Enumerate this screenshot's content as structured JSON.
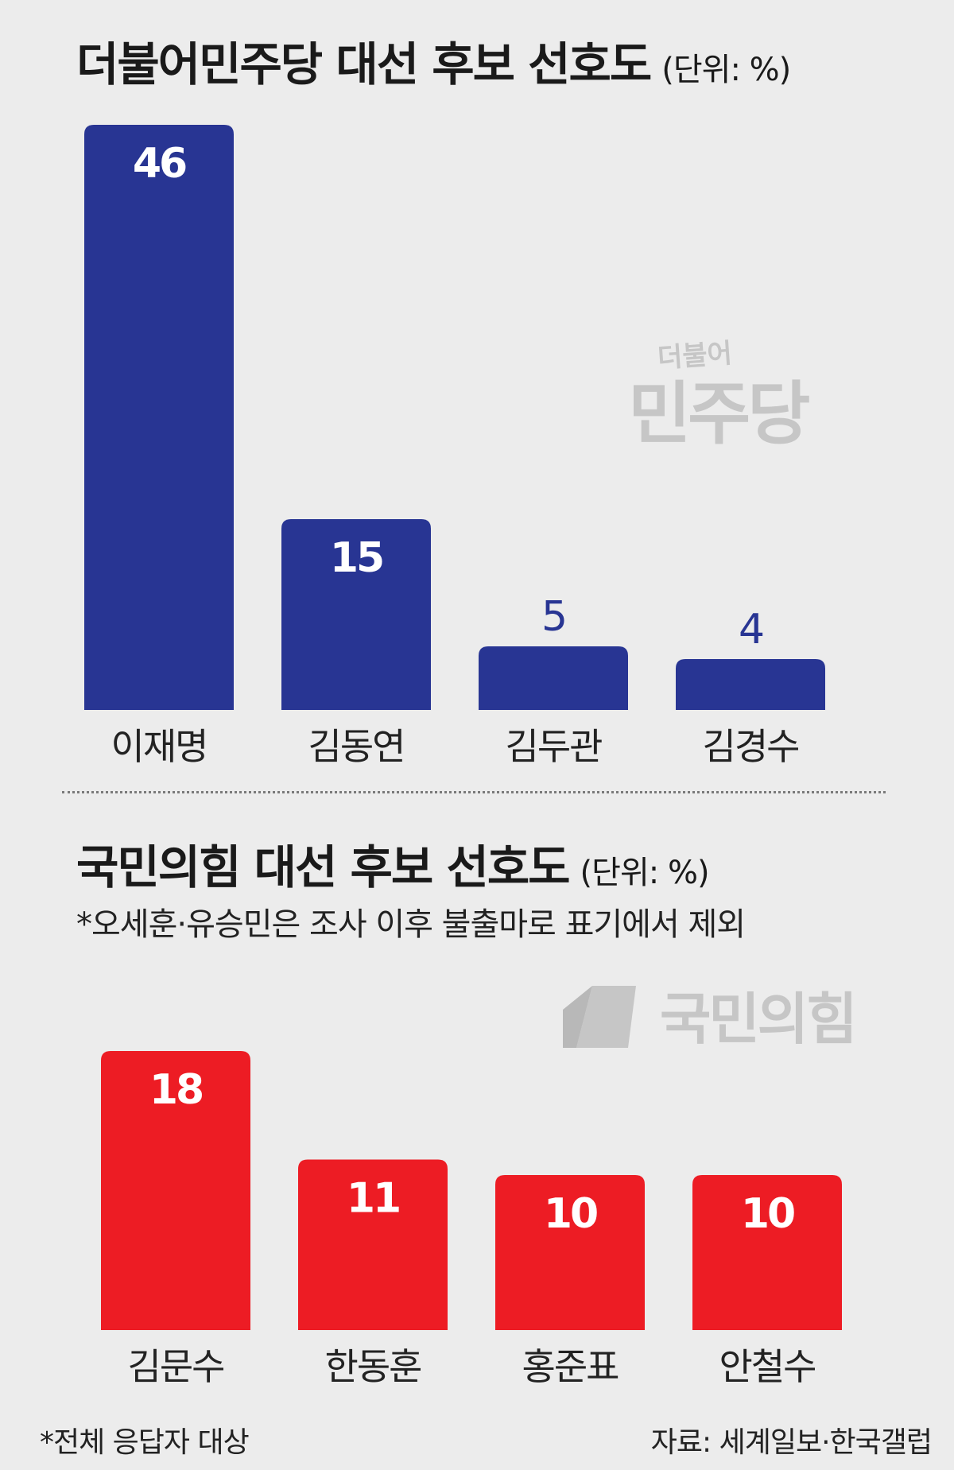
{
  "top": {
    "title": "더불어민주당 대선 후보 선호도",
    "unit": "(단위: %)",
    "logo_small": "더불어",
    "logo_main": "민주당"
  },
  "bottom": {
    "title": "국민의힘 대선 후보 선호도",
    "unit": "(단위: %)",
    "note": "*오세훈·유승민은 조사 이후 불출마로 표기에서 제외",
    "logo_main": "국민의힘"
  },
  "footer": {
    "left": "*전체 응답자 대상",
    "right": "자료: 세계일보·한국갤럽"
  },
  "colors": {
    "democratic": "#283593",
    "ppp": "#ed1c24",
    "background": "#ececec",
    "logo_gray": "#c6c6c6"
  },
  "chart_data": [
    {
      "type": "bar",
      "title": "더불어민주당 대선 후보 선호도",
      "unit": "(단위: %)",
      "categories": [
        "이재명",
        "김동연",
        "김두관",
        "김경수"
      ],
      "values": [
        46,
        15,
        5,
        4
      ],
      "color": "#283593",
      "xlabel": "",
      "ylabel": "",
      "grid": false,
      "legend": "none"
    },
    {
      "type": "bar",
      "title": "국민의힘 대선 후보 선호도",
      "unit": "(단위: %)",
      "categories": [
        "김문수",
        "한동훈",
        "홍준표",
        "안철수"
      ],
      "values": [
        18,
        11,
        10,
        10
      ],
      "color": "#ed1c24",
      "xlabel": "",
      "ylabel": "",
      "grid": false,
      "legend": "none"
    }
  ]
}
